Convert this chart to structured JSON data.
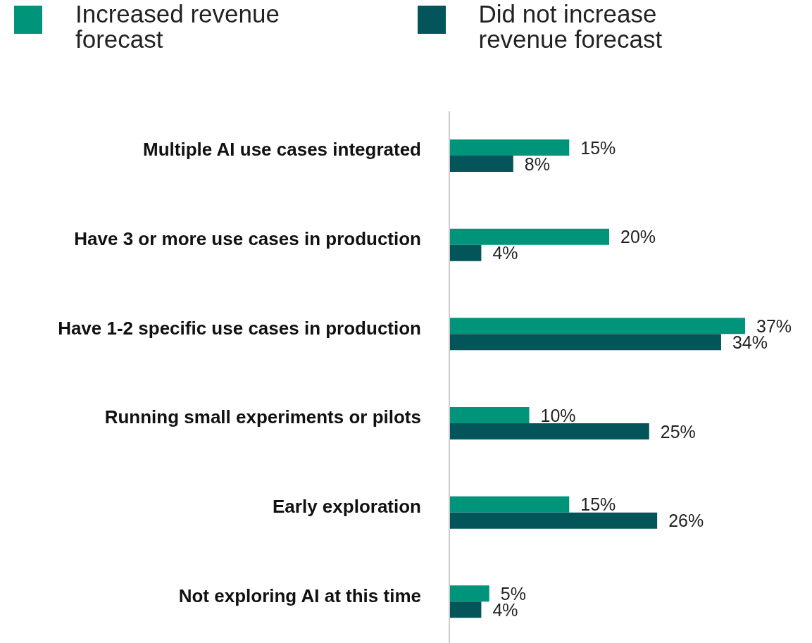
{
  "chart_data": {
    "type": "bar",
    "orientation": "horizontal",
    "legend": "top",
    "grid": false,
    "categories": [
      "Multiple AI use cases integrated",
      "Have 3 or more use cases in production",
      "Have 1-2 specific use cases in production",
      "Running small experiments or pilots",
      "Early exploration",
      "Not exploring AI at this time"
    ],
    "series": [
      {
        "name": "Increased revenue forecast",
        "color": "#00957a",
        "values": [
          15,
          20,
          37,
          10,
          15,
          5
        ],
        "value_labels": [
          "15%",
          "20%",
          "37%",
          "10%",
          "15%",
          "5%"
        ]
      },
      {
        "name": "Did not increase revenue forecast",
        "color": "#04555a",
        "values": [
          8,
          4,
          34,
          25,
          26,
          4
        ],
        "value_labels": [
          "8%",
          "4%",
          "34%",
          "25%",
          "26%",
          "4%"
        ]
      }
    ]
  }
}
